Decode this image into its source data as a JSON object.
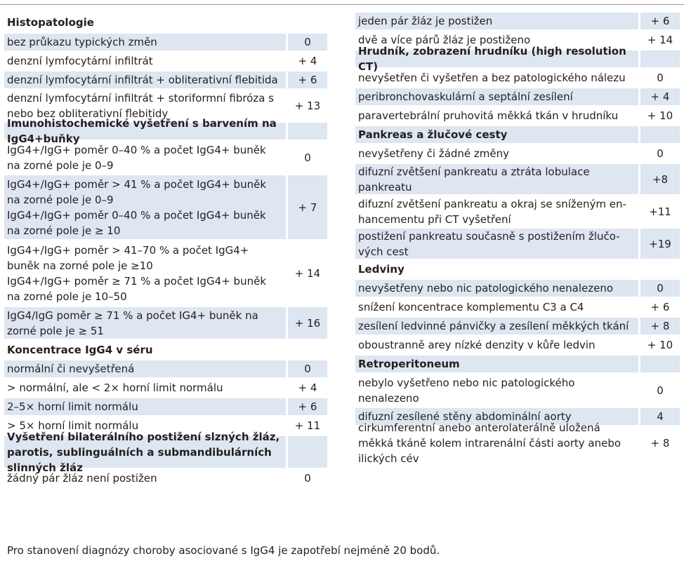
{
  "left": [
    {
      "kind": "header",
      "text": "Histopatologie",
      "value": "",
      "shade": false,
      "h": 30
    },
    {
      "kind": "row",
      "text": "bez průkazu typických změn",
      "value": "0",
      "shade": true,
      "h": 27
    },
    {
      "kind": "row",
      "text": "denzní lymfocytární infiltrát",
      "value": "+ 4",
      "shade": false,
      "h": 27
    },
    {
      "kind": "row",
      "text": "denzní lymfocytární infiltrát + obliterativní flebitida",
      "value": "+ 6",
      "shade": true,
      "h": 27
    },
    {
      "kind": "row",
      "text": "denzní lymfocytární infiltrát + storiformní fibróza s nebo bez obliterativní flebitidy",
      "value": "+ 13",
      "shade": false,
      "h": 46
    },
    {
      "kind": "header",
      "text": "Imunohistochemické vyšetření s barvením na IgG4+buňky",
      "value": "",
      "shade": true,
      "h": 27
    },
    {
      "kind": "row",
      "text": "IgG4+/IgG+ poměr 0–40 % a počet IgG4+ buněk na zorné pole je 0–9",
      "value": "0",
      "shade": false,
      "h": 48
    },
    {
      "kind": "row",
      "lines": [
        "IgG4+/IgG+ poměr > 41 % a počet IgG4+ buněk na zorné pole je 0–9",
        "IgG4+/IgG+ poměr 0–40 % a počet IgG4+ buněk na zorné pole je ≥ 10"
      ],
      "value": "+ 7",
      "shade": true,
      "h": 94
    },
    {
      "kind": "row",
      "lines": [
        "IgG4+/IgG+ poměr > 41–70 % a počet IgG4+ buněk na zorné pole je ≥10",
        "IgG4+/IgG+ poměr ≥ 71 % a počet IgG4+ buněk na zorné pole je 10–50"
      ],
      "value": "+ 14",
      "shade": false,
      "h": 94
    },
    {
      "kind": "row",
      "text": "IgG4/IgG poměr ≥ 71 % a počet IG4+ buněk na zorné pole je ≥ 51",
      "value": "+ 16",
      "shade": true,
      "h": 48
    },
    {
      "kind": "header",
      "text": "Koncentrace IgG4 v séru",
      "value": "",
      "shade": false,
      "h": 28
    },
    {
      "kind": "row",
      "text": "normální či nevyšetřená",
      "value": "0",
      "shade": true,
      "h": 27
    },
    {
      "kind": "row",
      "text": "> normální, ale < 2× horní limit normálu",
      "value": "+ 4",
      "shade": false,
      "h": 27
    },
    {
      "kind": "row",
      "text": "2–5× horní limit normálu",
      "value": "+ 6",
      "shade": true,
      "h": 27
    },
    {
      "kind": "row",
      "text": "> 5× horní limit normálu",
      "value": "+ 11",
      "shade": false,
      "h": 27
    },
    {
      "kind": "header",
      "text": "Vyšetření bilaterálního postižení slzných žláz, parotis, sublinguálních a submandibulárních slinných žláz",
      "value": "",
      "shade": true,
      "h": 48
    },
    {
      "kind": "row",
      "text": "žádný pár žláz není postižen",
      "value": "0",
      "shade": false,
      "h": 27
    }
  ],
  "right": [
    {
      "kind": "row",
      "text": "jeden pár žláz je postižen",
      "value": "+ 6",
      "shade": true,
      "h": 27
    },
    {
      "kind": "row",
      "text": "dvě a více párů žláz je postiženo",
      "value": "+ 14",
      "shade": false,
      "h": 27
    },
    {
      "kind": "header",
      "text": "Hrudník, zobrazení hrudníku (high resolution CT)",
      "value": "",
      "shade": true,
      "h": 27
    },
    {
      "kind": "row",
      "text": "nevyšetřen či vyšetřen a bez patologického nálezu",
      "value": "0",
      "shade": false,
      "h": 27
    },
    {
      "kind": "row",
      "text": "peribronchovaskulární a septální zesílení",
      "value": "+ 4",
      "shade": true,
      "h": 27
    },
    {
      "kind": "row",
      "text": "paravertebrální pruhovitá měkká tkán v hrudníku",
      "value": "+ 10",
      "shade": false,
      "h": 27
    },
    {
      "kind": "header",
      "text": "Pankreas a žlučové cesty",
      "value": "",
      "shade": true,
      "h": 27
    },
    {
      "kind": "row",
      "text": "nevyšetřeny či žádné změny",
      "value": "0",
      "shade": false,
      "h": 27
    },
    {
      "kind": "row",
      "text": "difuzní zvětšení pankreatu a ztráta lobulace pankreatu",
      "value": "+8",
      "shade": true,
      "h": 46
    },
    {
      "kind": "row",
      "text": "difuzní zvětšení pankreatu a okraj se sníženým en-hancementu při CT vyšetření",
      "value": "+11",
      "shade": false,
      "h": 46
    },
    {
      "kind": "row",
      "text": "postižení pankreatu současně s postižením žlučo-vých cest",
      "value": "+19",
      "shade": true,
      "h": 46
    },
    {
      "kind": "header",
      "text": "Ledviny",
      "value": "",
      "shade": false,
      "h": 27
    },
    {
      "kind": "row",
      "text": "nevyšetřeny nebo nic patologického nenalezeno",
      "value": "0",
      "shade": true,
      "h": 27
    },
    {
      "kind": "row",
      "text": "snížení koncentrace komplementu C3 a C4",
      "value": "+ 6",
      "shade": false,
      "h": 27
    },
    {
      "kind": "row",
      "text": "zesílení ledvinné pánvičky a zesílení měkkých tkání",
      "value": "+ 8",
      "shade": true,
      "h": 27
    },
    {
      "kind": "row",
      "text": "oboustranně arey nízké denzity v kůře ledvin",
      "value": "+ 10",
      "shade": false,
      "h": 27
    },
    {
      "kind": "header",
      "text": "Retroperitoneum",
      "value": "",
      "shade": true,
      "h": 27
    },
    {
      "kind": "row",
      "text": "nebylo vyšetřeno nebo nic patologického nenalezeno",
      "value": "0",
      "shade": false,
      "h": 48
    },
    {
      "kind": "row",
      "text": "difuzní zesílené stěny abdominální aorty",
      "value": "4",
      "shade": true,
      "h": 27
    },
    {
      "kind": "row",
      "text": "cirkumferentní anebo anterolaterálně uložená měkká tkáně kolem intrarenální části aorty anebo ilických cév",
      "value": "+ 8",
      "shade": false,
      "h": 48
    }
  ],
  "footnote": "Pro stanovení diagnózy choroby asociované s IgG4 je zapotřebí nejméně 20 bodů.",
  "colors": {
    "shade": "#dde6f1",
    "rule": "#9a9a9a"
  }
}
